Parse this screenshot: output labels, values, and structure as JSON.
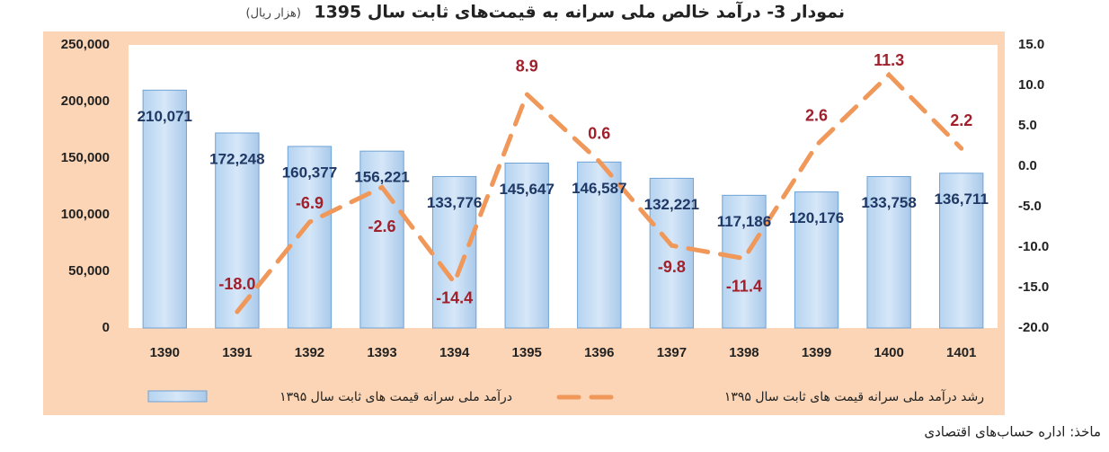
{
  "chart_data": {
    "type": "bar_line",
    "title": "نمودار 3- درآمد خالص ملی سرانه به قیمت‌های ثابت سال 1395",
    "subtitle": "(هزار ریال)",
    "source": "ماخذ: اداره حساب‌های اقتصادی",
    "categories": [
      "1390",
      "1391",
      "1392",
      "1393",
      "1394",
      "1395",
      "1396",
      "1397",
      "1398",
      "1399",
      "1400",
      "1401"
    ],
    "series": [
      {
        "name": "درآمد ملی سرانه قیمت های ثابت سال ۱۳۹۵",
        "type": "bar",
        "color": "#9dc3e6",
        "values": [
          210071,
          172248,
          160377,
          156221,
          133776,
          145647,
          146587,
          132221,
          117186,
          120176,
          133758,
          136711
        ],
        "value_labels": [
          "210,071",
          "172,248",
          "160,377",
          "156,221",
          "133,776",
          "145,647",
          "146,587",
          "132,221",
          "117,186",
          "120,176",
          "133,758",
          "136,711"
        ]
      },
      {
        "name": "رشد درآمد ملی سرانه قیمت های ثابت سال ۱۳۹۵",
        "type": "line",
        "axis": "y2",
        "color": "#f0975a",
        "values": [
          null,
          -18.0,
          -6.9,
          -2.6,
          -14.4,
          8.9,
          0.6,
          -9.8,
          -11.4,
          2.6,
          11.3,
          2.2
        ],
        "value_labels": [
          null,
          "-18.0",
          "-6.9",
          "-2.6",
          "-14.4",
          "8.9",
          "0.6",
          "-9.8",
          "-11.4",
          "2.6",
          "11.3",
          "2.2"
        ]
      }
    ],
    "ylim": [
      0,
      250000
    ],
    "yticks": [
      0,
      {
        "value": 50000,
        "label": "50,000"
      },
      {
        "value": 100000,
        "label": "100,000"
      },
      {
        "value": 150000,
        "label": "150,000"
      },
      {
        "value": 200000,
        "label": "200,000"
      },
      {
        "value": 250000,
        "label": "250,000"
      }
    ],
    "y2lim": [
      -20,
      15
    ],
    "y2ticks": [
      {
        "value": -20,
        "label": "-20.0"
      },
      {
        "value": -15,
        "label": "-15.0"
      },
      {
        "value": -10,
        "label": "-10.0"
      },
      {
        "value": -5,
        "label": "-5.0"
      },
      {
        "value": 0,
        "label": "0.0"
      },
      {
        "value": 5,
        "label": "5.0"
      },
      {
        "value": 10,
        "label": "10.0"
      },
      {
        "value": 15,
        "label": "15.0"
      }
    ],
    "grid": false,
    "legend": "bottom"
  }
}
